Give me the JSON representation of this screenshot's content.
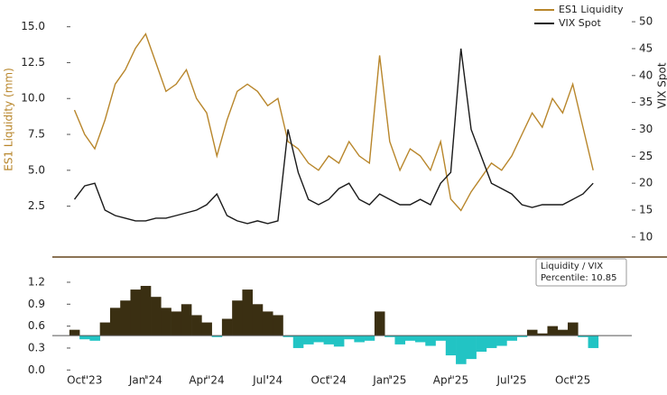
{
  "chart_data": [
    {
      "type": "line",
      "ylabel": "ES1 Liquidity (mm)",
      "y2label": "VIX Spot",
      "x": [
        -0.5,
        0,
        0.5,
        1,
        1.5,
        2,
        2.5,
        3,
        3.5,
        4,
        4.5,
        5,
        5.5,
        6,
        6.5,
        7,
        7.5,
        8,
        8.5,
        9,
        9.5,
        10,
        10.5,
        11,
        11.5,
        12,
        12.5,
        13,
        13.5,
        14,
        14.5,
        15,
        15.5,
        16,
        16.5,
        17,
        17.5,
        18,
        18.5,
        19,
        19.5,
        20,
        20.5,
        21,
        21.5,
        22,
        22.5,
        23,
        23.5,
        24,
        24.5,
        25
      ],
      "xlim": [
        -0.7,
        26.9
      ],
      "ylim": [
        -0.1,
        16.55
      ],
      "yticks": [
        2.5,
        {
          "value": 5,
          "label": "5.0"
        },
        7.5,
        {
          "value": 10,
          "label": "10.0"
        },
        12.5,
        {
          "value": 15,
          "label": "15.0"
        }
      ],
      "y2lim": [
        8.8,
        53.2
      ],
      "y2ticks": [
        10,
        15,
        20,
        25,
        30,
        35,
        40,
        45,
        50
      ],
      "legend": "upper right",
      "series": [
        {
          "name": "ES1 Liquidity",
          "color": "#b8862b",
          "values": [
            9.2,
            7.5,
            6.5,
            8.5,
            11,
            12,
            13.5,
            14.5,
            12.5,
            10.5,
            11,
            12,
            10,
            9,
            6,
            8.5,
            10.5,
            11,
            10.5,
            9.5,
            10,
            7,
            6.5,
            5.5,
            5,
            6,
            5.5,
            7,
            6,
            5.5,
            13,
            7,
            5,
            6.5,
            6,
            5,
            7,
            3,
            2.2,
            3.5,
            4.5,
            5.5,
            5,
            6,
            7.5,
            9,
            8,
            10,
            9,
            11,
            8,
            5
          ]
        },
        {
          "name": "VIX Spot",
          "color": "#1a1a1a",
          "axis": "y2",
          "values": [
            17,
            19.5,
            20,
            15,
            14,
            13.5,
            13,
            13,
            13.5,
            13.5,
            14,
            14.5,
            15,
            16,
            18,
            14,
            13,
            12.5,
            13,
            12.5,
            13,
            30,
            22,
            17,
            16,
            17,
            19,
            20,
            17,
            16,
            18,
            17,
            16,
            16,
            17,
            16,
            20,
            22,
            45,
            30,
            25,
            20,
            19,
            18,
            16,
            15.5,
            16,
            16,
            16,
            17,
            18,
            20
          ]
        }
      ]
    },
    {
      "type": "bar",
      "x": [
        -0.5,
        0,
        0.5,
        1,
        1.5,
        2,
        2.5,
        3,
        3.5,
        4,
        4.5,
        5,
        5.5,
        6,
        6.5,
        7,
        7.5,
        8,
        8.5,
        9,
        9.5,
        10,
        10.5,
        11,
        11.5,
        12,
        12.5,
        13,
        13.5,
        14,
        14.5,
        15,
        15.5,
        16,
        16.5,
        17,
        17.5,
        18,
        18.5,
        19,
        19.5,
        20,
        20.5,
        21,
        21.5,
        22,
        22.5,
        23,
        23.5,
        24,
        24.5,
        25
      ],
      "values": [
        0.55,
        0.42,
        0.4,
        0.65,
        0.85,
        0.95,
        1.1,
        1.15,
        1.0,
        0.85,
        0.8,
        0.9,
        0.75,
        0.65,
        0.45,
        0.7,
        0.95,
        1.1,
        0.9,
        0.8,
        0.75,
        0.45,
        0.3,
        0.35,
        0.38,
        0.35,
        0.32,
        0.42,
        0.38,
        0.4,
        0.8,
        0.45,
        0.35,
        0.4,
        0.38,
        0.33,
        0.4,
        0.2,
        0.08,
        0.15,
        0.25,
        0.3,
        0.33,
        0.4,
        0.45,
        0.55,
        0.5,
        0.6,
        0.55,
        0.65,
        0.45,
        0.3
      ],
      "threshold": 0.47,
      "color_above": "#3a2f12",
      "color_below": "#22c4c4",
      "xlim": [
        -0.7,
        26.9
      ],
      "xticks": [
        {
          "value": 0,
          "label": "Oct'23"
        },
        {
          "value": 3,
          "label": "Jan'24"
        },
        {
          "value": 6,
          "label": "Apr'24"
        },
        {
          "value": 9,
          "label": "Jul'24"
        },
        {
          "value": 12,
          "label": "Oct'24"
        },
        {
          "value": 15,
          "label": "Jan'25"
        },
        {
          "value": 18,
          "label": "Apr'25"
        },
        {
          "value": 21,
          "label": "Jul'25"
        },
        {
          "value": 24,
          "label": "Oct'25"
        }
      ],
      "ylim": [
        -0.12,
        1.36
      ],
      "yticks": [
        {
          "value": 0,
          "label": "0.0"
        },
        0.3,
        0.6,
        0.9,
        1.2
      ],
      "annotation": [
        "Liquidity / VIX",
        "Percentile: 10.85"
      ]
    }
  ]
}
